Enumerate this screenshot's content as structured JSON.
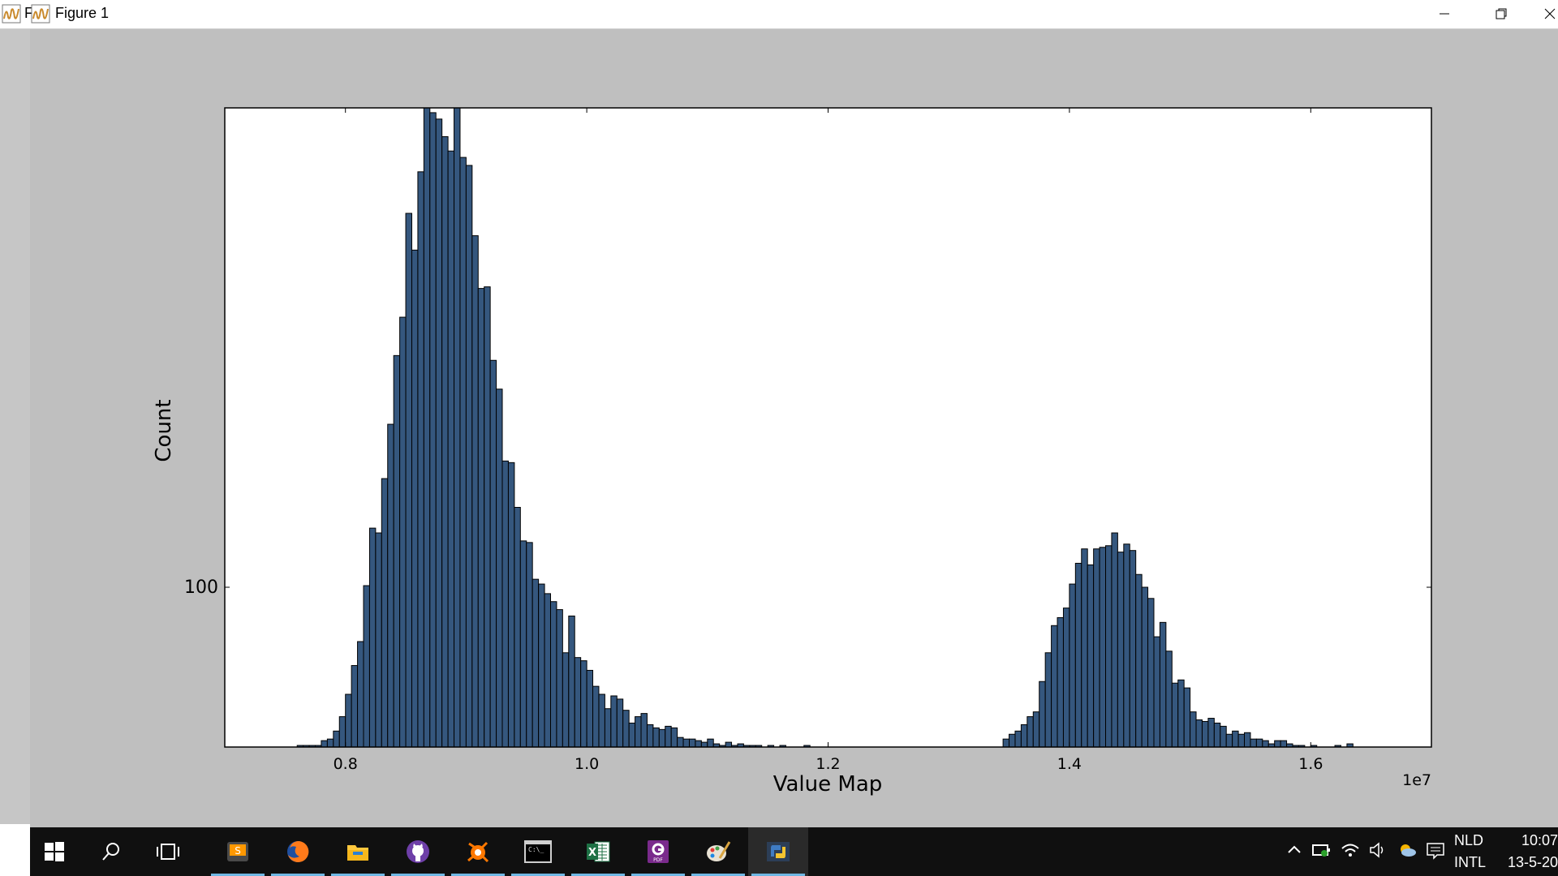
{
  "window": {
    "title": "Figure 1",
    "title_prefix": "F"
  },
  "chart_data": {
    "type": "bar",
    "xlabel": "Value Map",
    "ylabel": "Count",
    "x_offset_label": "1e7",
    "xlim": [
      0.7,
      1.7
    ],
    "ylim": [
      0,
      4.0
    ],
    "xticks": [
      0.8,
      1.0,
      1.2,
      1.4,
      1.6
    ],
    "xtick_labels": [
      "0.8",
      "1.0",
      "1.2",
      "1.4",
      "1.6"
    ],
    "yticks": [
      1.0
    ],
    "ytick_labels": [
      "100"
    ],
    "bin_width": 0.005,
    "color": "#35577e",
    "bins": [
      [
        0.76,
        0.01
      ],
      [
        0.765,
        0.01
      ],
      [
        0.77,
        0.01
      ],
      [
        0.775,
        0.01
      ],
      [
        0.78,
        0.04
      ],
      [
        0.785,
        0.05
      ],
      [
        0.79,
        0.1
      ],
      [
        0.795,
        0.19
      ],
      [
        0.8,
        0.33
      ],
      [
        0.805,
        0.51
      ],
      [
        0.81,
        0.66
      ],
      [
        0.815,
        1.01
      ],
      [
        0.82,
        1.37
      ],
      [
        0.825,
        1.34
      ],
      [
        0.83,
        1.68
      ],
      [
        0.835,
        2.02
      ],
      [
        0.84,
        2.45
      ],
      [
        0.845,
        2.69
      ],
      [
        0.85,
        3.34
      ],
      [
        0.855,
        3.11
      ],
      [
        0.86,
        3.6
      ],
      [
        0.865,
        4.0
      ],
      [
        0.87,
        3.97
      ],
      [
        0.875,
        3.93
      ],
      [
        0.88,
        3.82
      ],
      [
        0.885,
        3.73
      ],
      [
        0.89,
        4.0
      ],
      [
        0.895,
        3.69
      ],
      [
        0.9,
        3.64
      ],
      [
        0.905,
        3.2
      ],
      [
        0.91,
        2.87
      ],
      [
        0.915,
        2.88
      ],
      [
        0.92,
        2.42
      ],
      [
        0.925,
        2.24
      ],
      [
        0.93,
        1.79
      ],
      [
        0.935,
        1.78
      ],
      [
        0.94,
        1.5
      ],
      [
        0.945,
        1.29
      ],
      [
        0.95,
        1.28
      ],
      [
        0.955,
        1.05
      ],
      [
        0.96,
        1.02
      ],
      [
        0.965,
        0.96
      ],
      [
        0.97,
        0.91
      ],
      [
        0.975,
        0.86
      ],
      [
        0.98,
        0.59
      ],
      [
        0.985,
        0.82
      ],
      [
        0.99,
        0.56
      ],
      [
        0.995,
        0.54
      ],
      [
        1.0,
        0.48
      ],
      [
        1.005,
        0.38
      ],
      [
        1.01,
        0.33
      ],
      [
        1.015,
        0.24
      ],
      [
        1.02,
        0.32
      ],
      [
        1.025,
        0.3
      ],
      [
        1.03,
        0.23
      ],
      [
        1.035,
        0.15
      ],
      [
        1.04,
        0.19
      ],
      [
        1.045,
        0.21
      ],
      [
        1.05,
        0.14
      ],
      [
        1.055,
        0.12
      ],
      [
        1.06,
        0.11
      ],
      [
        1.065,
        0.13
      ],
      [
        1.07,
        0.12
      ],
      [
        1.075,
        0.06
      ],
      [
        1.08,
        0.05
      ],
      [
        1.085,
        0.05
      ],
      [
        1.09,
        0.04
      ],
      [
        1.095,
        0.03
      ],
      [
        1.1,
        0.05
      ],
      [
        1.105,
        0.02
      ],
      [
        1.11,
        0.01
      ],
      [
        1.115,
        0.03
      ],
      [
        1.12,
        0.01
      ],
      [
        1.125,
        0.02
      ],
      [
        1.13,
        0.01
      ],
      [
        1.135,
        0.01
      ],
      [
        1.14,
        0.01
      ],
      [
        1.15,
        0.01
      ],
      [
        1.16,
        0.01
      ],
      [
        1.18,
        0.01
      ],
      [
        1.345,
        0.05
      ],
      [
        1.35,
        0.08
      ],
      [
        1.355,
        0.1
      ],
      [
        1.36,
        0.14
      ],
      [
        1.365,
        0.19
      ],
      [
        1.37,
        0.22
      ],
      [
        1.375,
        0.41
      ],
      [
        1.38,
        0.59
      ],
      [
        1.385,
        0.76
      ],
      [
        1.39,
        0.81
      ],
      [
        1.395,
        0.87
      ],
      [
        1.4,
        1.02
      ],
      [
        1.405,
        1.15
      ],
      [
        1.41,
        1.24
      ],
      [
        1.415,
        1.14
      ],
      [
        1.42,
        1.24
      ],
      [
        1.425,
        1.25
      ],
      [
        1.43,
        1.26
      ],
      [
        1.435,
        1.34
      ],
      [
        1.44,
        1.22
      ],
      [
        1.445,
        1.27
      ],
      [
        1.45,
        1.23
      ],
      [
        1.455,
        1.08
      ],
      [
        1.46,
        1.0
      ],
      [
        1.465,
        0.93
      ],
      [
        1.47,
        0.69
      ],
      [
        1.475,
        0.78
      ],
      [
        1.48,
        0.6
      ],
      [
        1.485,
        0.4
      ],
      [
        1.49,
        0.42
      ],
      [
        1.495,
        0.37
      ],
      [
        1.5,
        0.22
      ],
      [
        1.505,
        0.17
      ],
      [
        1.51,
        0.16
      ],
      [
        1.515,
        0.18
      ],
      [
        1.52,
        0.15
      ],
      [
        1.525,
        0.13
      ],
      [
        1.53,
        0.08
      ],
      [
        1.535,
        0.1
      ],
      [
        1.54,
        0.08
      ],
      [
        1.545,
        0.09
      ],
      [
        1.55,
        0.05
      ],
      [
        1.555,
        0.05
      ],
      [
        1.56,
        0.04
      ],
      [
        1.565,
        0.02
      ],
      [
        1.57,
        0.04
      ],
      [
        1.575,
        0.04
      ],
      [
        1.58,
        0.02
      ],
      [
        1.585,
        0.01
      ],
      [
        1.59,
        0.01
      ],
      [
        1.6,
        0.01
      ],
      [
        1.62,
        0.01
      ],
      [
        1.63,
        0.02
      ]
    ]
  },
  "taskbar": {
    "apps": [
      {
        "name": "sublime-text"
      },
      {
        "name": "firefox"
      },
      {
        "name": "file-explorer"
      },
      {
        "name": "github"
      },
      {
        "name": "avast"
      },
      {
        "name": "command-prompt"
      },
      {
        "name": "excel"
      },
      {
        "name": "pdf-reader"
      },
      {
        "name": "paint"
      },
      {
        "name": "python"
      }
    ],
    "tray": {
      "language": "NLD",
      "layout": "INTL",
      "time": "10:07",
      "date": "13-5-20"
    }
  }
}
